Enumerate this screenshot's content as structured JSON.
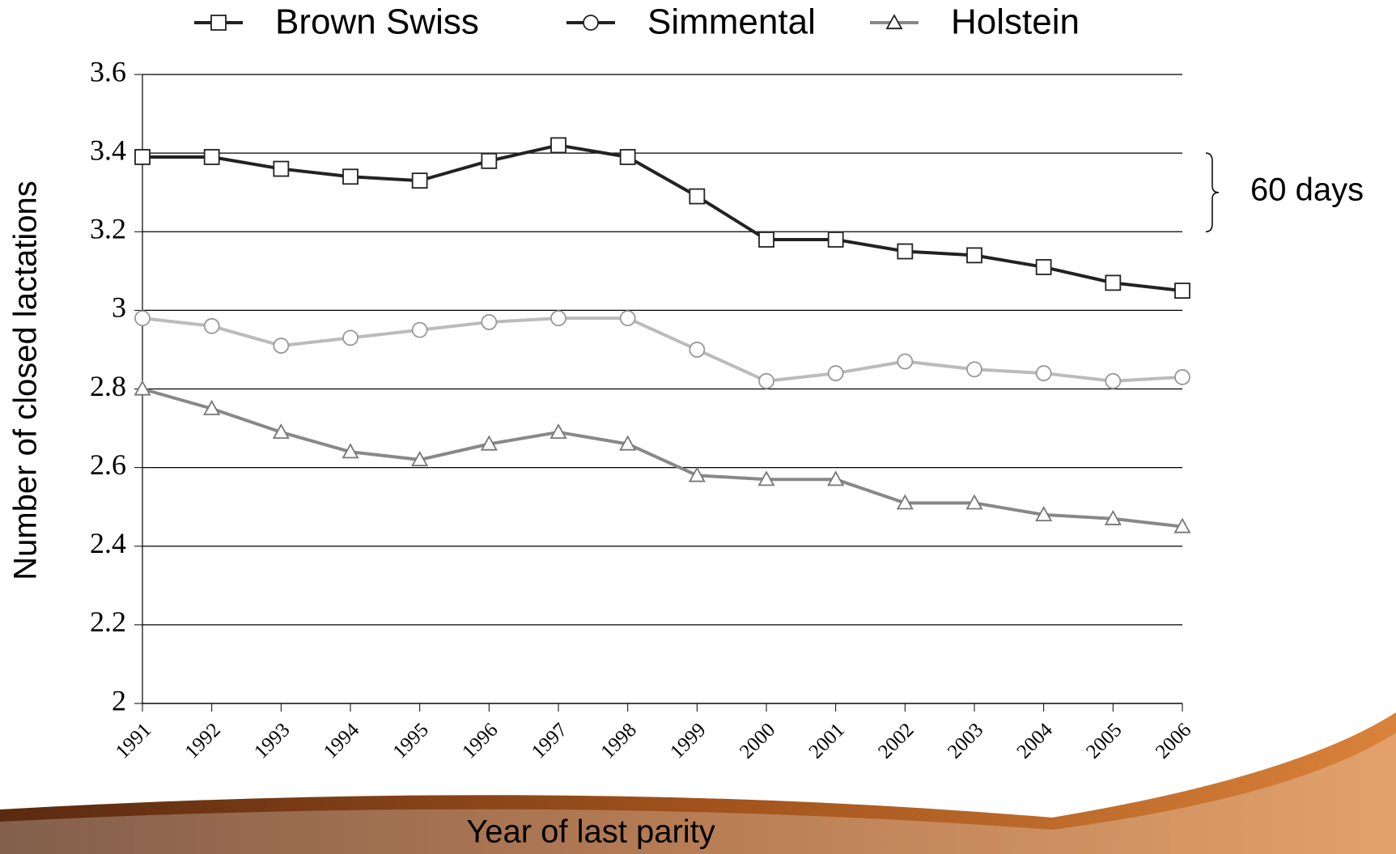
{
  "chart_data": {
    "type": "line",
    "x_label": "Year of last parity",
    "y_label": "Number of closed lactations",
    "annotation": "60 days",
    "categories": [
      "1991",
      "1992",
      "1993",
      "1994",
      "1995",
      "1996",
      "1997",
      "1998",
      "1999",
      "2000",
      "2001",
      "2002",
      "2003",
      "2004",
      "2005",
      "2006"
    ],
    "series": [
      {
        "name": "Brown Swiss",
        "color": "#222222",
        "marker": "square",
        "values": [
          3.39,
          3.39,
          3.36,
          3.34,
          3.33,
          3.38,
          3.42,
          3.39,
          3.29,
          3.18,
          3.18,
          3.15,
          3.14,
          3.11,
          3.07,
          3.05
        ]
      },
      {
        "name": "Simmental",
        "color": "#bbbbbb",
        "marker": "circle",
        "values": [
          2.98,
          2.96,
          2.91,
          2.93,
          2.95,
          2.97,
          2.98,
          2.98,
          2.9,
          2.82,
          2.84,
          2.87,
          2.85,
          2.84,
          2.82,
          2.83
        ]
      },
      {
        "name": "Holstein",
        "color": "#888888",
        "marker": "triangle",
        "values": [
          2.8,
          2.75,
          2.69,
          2.64,
          2.62,
          2.66,
          2.69,
          2.66,
          2.58,
          2.57,
          2.57,
          2.51,
          2.51,
          2.48,
          2.47,
          2.45
        ]
      }
    ],
    "ylim": [
      2,
      3.6
    ],
    "yticks": [
      3.6,
      3.4,
      3.2,
      3,
      2.8,
      2.6,
      2.4,
      2.2,
      2
    ],
    "grid": true,
    "legend": "top"
  }
}
